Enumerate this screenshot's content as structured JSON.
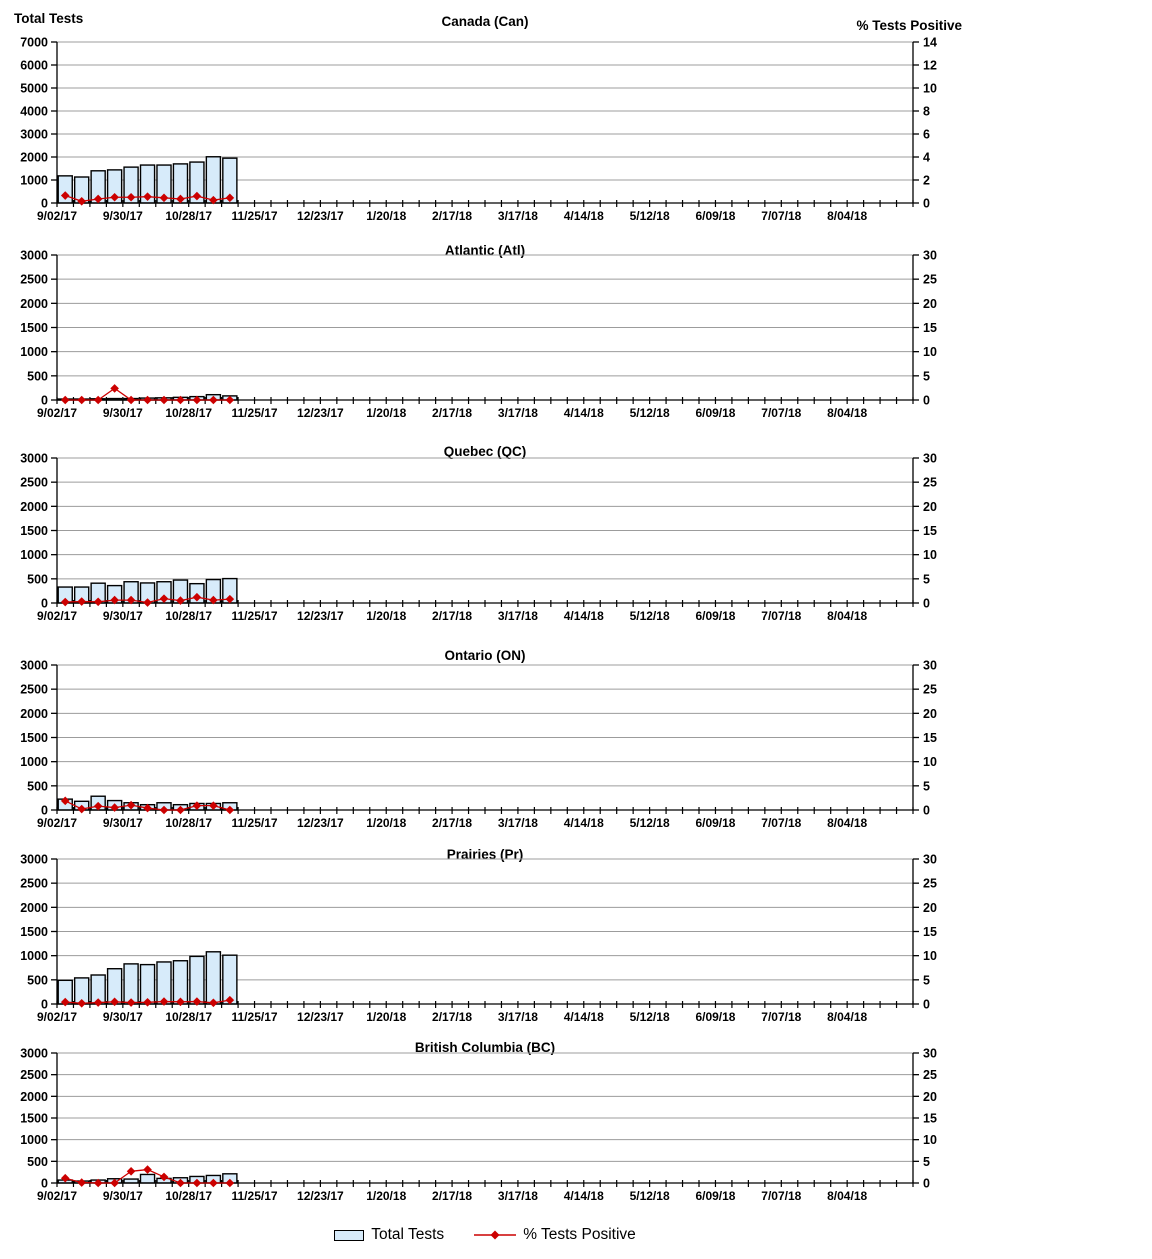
{
  "headers": {
    "left": "Total Tests",
    "right": "% Tests Positive"
  },
  "legend": {
    "items": [
      {
        "label": "Total Tests",
        "swatch": "bar-swatch-icon"
      },
      {
        "label": "% Tests Positive",
        "swatch": "line-diamond-icon"
      }
    ]
  },
  "colors": {
    "bar_fill": "#D7EBFA",
    "bar_border": "#000000",
    "line_color": "#CC0000",
    "grid_color": "#9C9C9C",
    "axis_color": "#000000"
  },
  "x_axis": {
    "weeks_total": 53,
    "label_every": 4,
    "tick_labels": [
      "9/02/17",
      "9/30/17",
      "10/28/17",
      "11/25/17",
      "12/23/17",
      "1/20/18",
      "2/17/18",
      "3/17/18",
      "4/14/18",
      "5/12/18",
      "6/09/18",
      "7/07/18",
      "8/04/18"
    ],
    "data_weeks": [
      "9/02/17",
      "9/09/17",
      "9/16/17",
      "9/23/17",
      "9/30/17",
      "10/07/17",
      "10/14/17",
      "10/21/17",
      "10/28/17",
      "11/04/17",
      "11/11/17"
    ]
  },
  "chart_data": [
    {
      "type": "bar+line",
      "title": "Canada (Can)",
      "left_axis": {
        "label": "Total Tests",
        "min": 0,
        "max": 7000,
        "step": 1000
      },
      "right_axis": {
        "label": "% Tests Positive",
        "min": 0,
        "max": 14,
        "step": 2
      },
      "bars": [
        1180,
        1130,
        1400,
        1440,
        1560,
        1650,
        1650,
        1700,
        1780,
        2010,
        1950
      ],
      "pct_positive": [
        0.65,
        0.15,
        0.35,
        0.5,
        0.5,
        0.55,
        0.45,
        0.35,
        0.6,
        0.25,
        0.45
      ]
    },
    {
      "type": "bar+line",
      "title": "Atlantic (Atl)",
      "left_axis": {
        "label": "Total Tests",
        "min": 0,
        "max": 3000,
        "step": 500
      },
      "right_axis": {
        "label": "% Tests Positive",
        "min": 0,
        "max": 30,
        "step": 5
      },
      "bars": [
        20,
        20,
        25,
        30,
        30,
        40,
        45,
        55,
        70,
        110,
        85
      ],
      "pct_positive": [
        0,
        0,
        0,
        2.4,
        0,
        0,
        0,
        0,
        0,
        0,
        0
      ]
    },
    {
      "type": "bar+line",
      "title": "Quebec (QC)",
      "left_axis": {
        "label": "Total Tests",
        "min": 0,
        "max": 3000,
        "step": 500
      },
      "right_axis": {
        "label": "% Tests Positive",
        "min": 0,
        "max": 30,
        "step": 5
      },
      "bars": [
        330,
        330,
        410,
        360,
        440,
        415,
        440,
        475,
        400,
        485,
        505
      ],
      "pct_positive": [
        0.2,
        0.3,
        0.25,
        0.6,
        0.6,
        0.1,
        0.9,
        0.5,
        1.2,
        0.6,
        0.8
      ]
    },
    {
      "type": "bar+line",
      "title": "Ontario (ON)",
      "left_axis": {
        "label": "Total Tests",
        "min": 0,
        "max": 3000,
        "step": 500
      },
      "right_axis": {
        "label": "% Tests Positive",
        "min": 0,
        "max": 30,
        "step": 5
      },
      "bars": [
        225,
        180,
        285,
        195,
        150,
        110,
        150,
        110,
        135,
        135,
        150
      ],
      "pct_positive": [
        1.9,
        0.2,
        0.8,
        0.5,
        1.0,
        0.4,
        0,
        0,
        0.9,
        0.9,
        0
      ]
    },
    {
      "type": "bar+line",
      "title": "Prairies (Pr)",
      "left_axis": {
        "label": "Total Tests",
        "min": 0,
        "max": 3000,
        "step": 500
      },
      "right_axis": {
        "label": "% Tests Positive",
        "min": 0,
        "max": 30,
        "step": 5
      },
      "bars": [
        490,
        540,
        600,
        730,
        830,
        815,
        870,
        895,
        985,
        1080,
        1010
      ],
      "pct_positive": [
        0.4,
        0.15,
        0.3,
        0.45,
        0.3,
        0.35,
        0.5,
        0.45,
        0.5,
        0.25,
        0.8
      ]
    },
    {
      "type": "bar+line",
      "title": "British Columbia (BC)",
      "left_axis": {
        "label": "Total Tests",
        "min": 0,
        "max": 3000,
        "step": 500
      },
      "right_axis": {
        "label": "% Tests Positive",
        "min": 0,
        "max": 30,
        "step": 5
      },
      "bars": [
        68,
        45,
        68,
        98,
        91,
        197,
        106,
        121,
        151,
        174,
        212
      ],
      "pct_positive": [
        1.1,
        0.1,
        0,
        0,
        2.7,
        3.1,
        1.4,
        0,
        0,
        0,
        0
      ]
    }
  ]
}
